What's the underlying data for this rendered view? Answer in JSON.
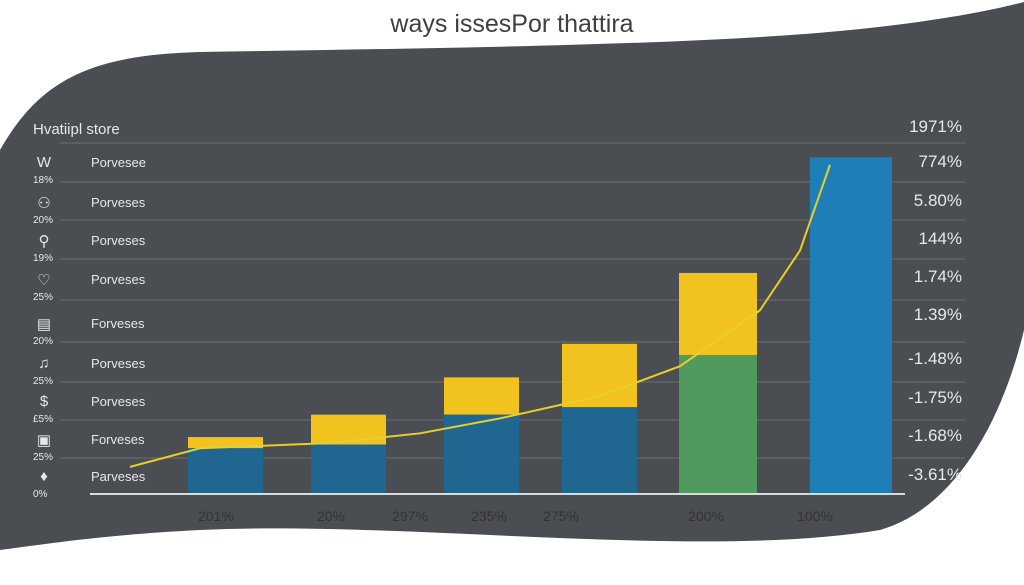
{
  "title": "ways issesPor thattira",
  "chart_data": {
    "type": "bar",
    "legend_header": "Hvatiipl store",
    "rows": [
      {
        "icon": "w-letter-icon",
        "glyph": "W",
        "label": "Porvesee",
        "pct": "18%"
      },
      {
        "icon": "people-icon",
        "glyph": "⚇",
        "label": "Porveses",
        "pct": "20%"
      },
      {
        "icon": "location-pin-icon",
        "glyph": "⚲",
        "label": "Porveses",
        "pct": "19%"
      },
      {
        "icon": "handshake-icon",
        "glyph": "♡",
        "label": "Porveses",
        "pct": "25%"
      },
      {
        "icon": "document-icon",
        "glyph": "▤",
        "label": "Forveses",
        "pct": "20%"
      },
      {
        "icon": "music-note-icon",
        "glyph": "♫",
        "label": "Porveses",
        "pct": "25%"
      },
      {
        "icon": "dollar-icon",
        "glyph": "$",
        "label": "Porveses",
        "pct": "£5%"
      },
      {
        "icon": "box-icon",
        "glyph": "▣",
        "label": "Forveses",
        "pct": "25%"
      },
      {
        "icon": "bulb-icon",
        "glyph": "♦",
        "label": "Parveses",
        "pct": "0%"
      }
    ],
    "right_labels": [
      "1971%",
      "774%",
      "5.80%",
      "144%",
      "1.74%",
      "1.39%",
      "-1.48%",
      "-1.75%",
      "-1.68%",
      "-3.61%"
    ],
    "x_tick_labels": [
      "201%",
      "20%",
      "297%",
      "235%",
      "275%",
      "200%",
      "100%"
    ],
    "bars": [
      {
        "total": 15,
        "lower": 12,
        "lower_color": "#1f6690"
      },
      {
        "total": 21,
        "lower": 13,
        "lower_color": "#1f6690"
      },
      {
        "total": 31,
        "lower": 21,
        "lower_color": "#1f6690"
      },
      {
        "total": 40,
        "lower": 23,
        "lower_color": "#1f6690"
      },
      {
        "total": 59,
        "lower": 37,
        "lower_color": "#4f9a5c"
      },
      {
        "total": 90,
        "lower": 90,
        "lower_color": "#1e7fb8"
      }
    ],
    "upper_color": "#f2c21e",
    "trend_line": [
      7,
      12,
      13.4,
      16,
      20,
      26,
      34,
      49,
      65,
      88
    ],
    "trend_color": "#e8cf2a",
    "ylim": [
      0,
      100
    ],
    "grid": true
  }
}
